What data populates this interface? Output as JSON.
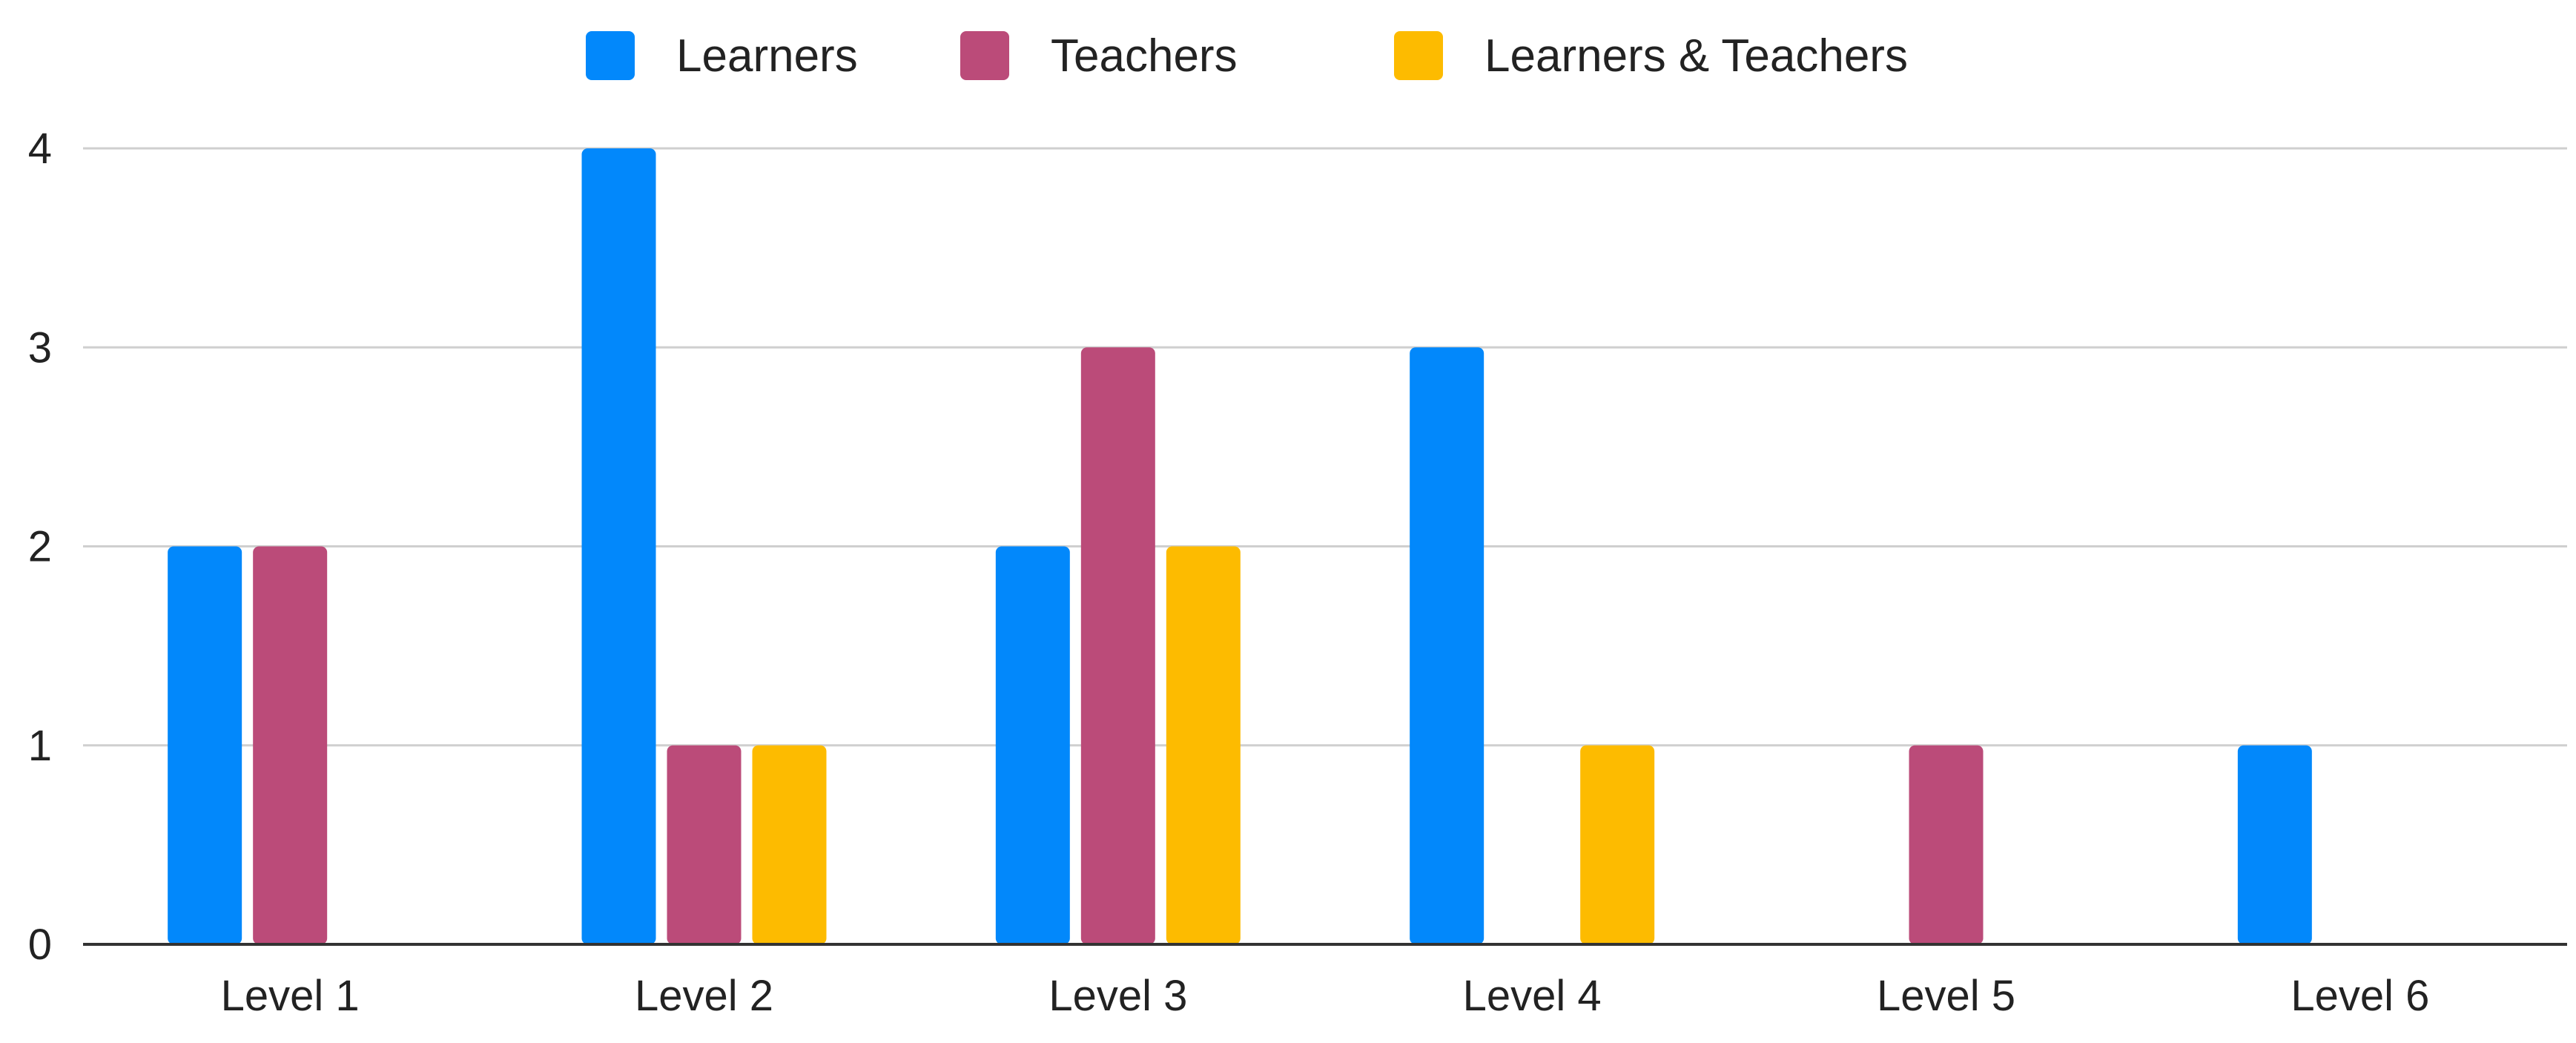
{
  "chart_data": {
    "type": "bar",
    "categories": [
      "Level 1",
      "Level 2",
      "Level 3",
      "Level 4",
      "Level 5",
      "Level 6"
    ],
    "series": [
      {
        "name": "Learners",
        "color": "#0288fb",
        "values": [
          2,
          4,
          2,
          3,
          0,
          1
        ]
      },
      {
        "name": "Teachers",
        "color": "#bb4b79",
        "values": [
          2,
          1,
          3,
          0,
          1,
          0
        ]
      },
      {
        "name": "Learners & Teachers",
        "color": "#fdbb00",
        "values": [
          0,
          1,
          2,
          1,
          0,
          0
        ]
      }
    ],
    "title": "",
    "xlabel": "",
    "ylabel": "",
    "ylim": [
      0,
      4
    ],
    "yticks": [
      0,
      1,
      2,
      3,
      4
    ],
    "grid": true,
    "legend_position": "top-center"
  }
}
